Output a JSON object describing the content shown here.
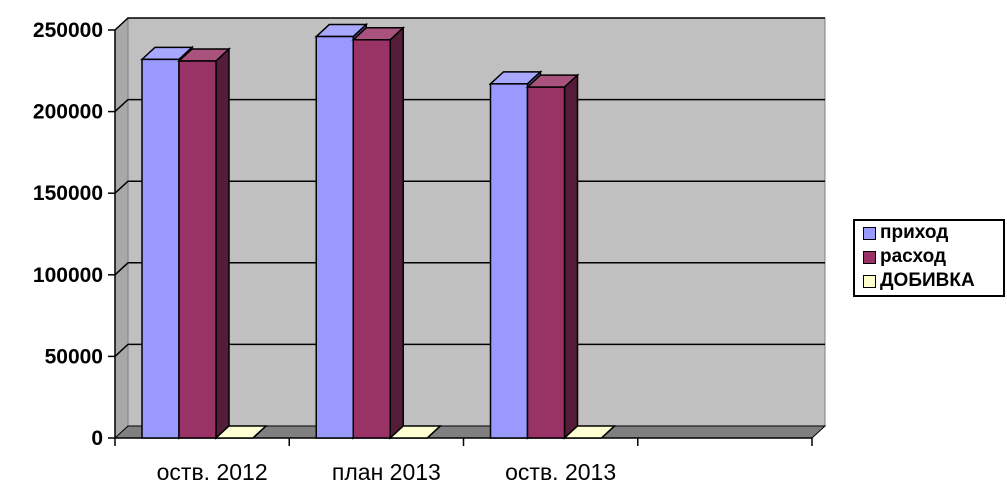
{
  "chart_data": {
    "type": "bar",
    "categories": [
      "оств. 2012",
      "план 2013",
      "оств. 2013"
    ],
    "series": [
      {
        "name": "приход",
        "values": [
          232000,
          246000,
          217000
        ],
        "color": "#9999FF"
      },
      {
        "name": "расход",
        "values": [
          231000,
          244000,
          215000
        ],
        "color": "#993366"
      },
      {
        "name": "ДОБИВКА",
        "values": [
          0,
          0,
          0
        ],
        "color": "#FFFFCC"
      }
    ],
    "ylim": [
      0,
      250000
    ],
    "yticks": [
      "0",
      "50000",
      "100000",
      "150000",
      "200000",
      "250000"
    ],
    "ytick_values": [
      0,
      50000,
      100000,
      150000,
      200000,
      250000
    ],
    "grid": true,
    "plot_background": "#C0C0C0",
    "legend_position": "right",
    "three_d": true
  }
}
